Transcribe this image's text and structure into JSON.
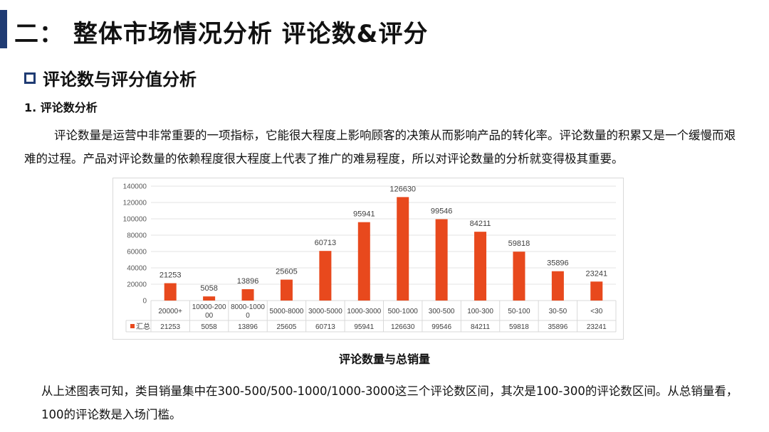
{
  "header": {
    "title": "二： 整体市场情况分析 评论数&评分",
    "accent_color": "#1f3b73"
  },
  "section": {
    "title": "评论数与评分值分析",
    "icon": "hollow-square-icon"
  },
  "subsection": {
    "title": "1. 评论数分析"
  },
  "intro_paragraph": "评论数量是运营中非常重要的一项指标，它能很大程度上影响顾客的决策从而影响产品的转化率。评论数量的积累又是一个缓慢而艰难的过程。产品对评论数量的依赖程度很大程度上代表了推广的难易程度，所以对评论数量的分析就变得极其重要。",
  "chart_data": {
    "type": "bar",
    "title": "",
    "xlabel": "",
    "ylabel": "",
    "categories": [
      "20000+",
      "10000-20000",
      "8000-10000",
      "5000-8000",
      "3000-5000",
      "1000-3000",
      "500-1000",
      "300-500",
      "100-300",
      "50-100",
      "30-50",
      "<30"
    ],
    "category_label_lines": [
      [
        "20000+"
      ],
      [
        "10000-200",
        "00"
      ],
      [
        "8000-1000",
        "0"
      ],
      [
        "5000-8000"
      ],
      [
        "3000-5000"
      ],
      [
        "1000-3000"
      ],
      [
        "500-1000"
      ],
      [
        "300-500"
      ],
      [
        "100-300"
      ],
      [
        "50-100"
      ],
      [
        "30-50"
      ],
      [
        "<30"
      ]
    ],
    "series": [
      {
        "name": "汇总",
        "values": [
          21253,
          5058,
          13896,
          25605,
          60713,
          95941,
          126630,
          99546,
          84211,
          59818,
          35896,
          23241
        ],
        "color": "#e8491d"
      }
    ],
    "ylim": [
      0,
      140000
    ],
    "yticks": [
      0,
      20000,
      40000,
      60000,
      80000,
      100000,
      120000,
      140000
    ],
    "grid": true,
    "data_labels": true,
    "data_table": true,
    "legend": "data-table-row"
  },
  "chart_caption": "评论数量与总销量",
  "conclusion_paragraph": "从上述图表可知，类目销量集中在300-500/500-1000/1000-3000这三个评论数区间，其次是100-300的评论数区间。从总销量看，100的评论数是入场门槛。"
}
